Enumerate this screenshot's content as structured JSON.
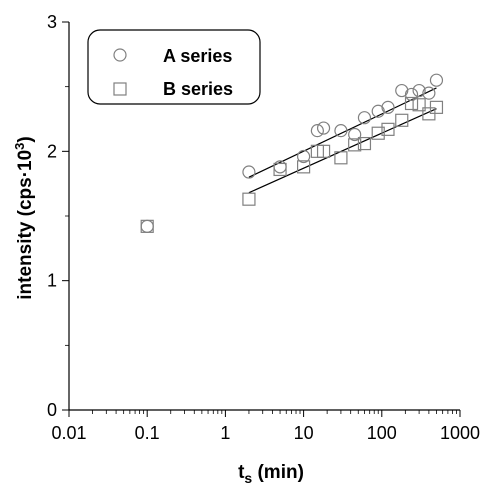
{
  "chart_data": {
    "type": "scatter",
    "xscale": "log",
    "xlim": [
      0.01,
      1000
    ],
    "ylim": [
      0,
      3
    ],
    "xlabel_main": "t",
    "xlabel_sub": "s",
    "xlabel_rest": " (min)",
    "ylabel_main": "intensity (cps·10",
    "ylabel_sup": "3",
    "ylabel_end": ")",
    "x_ticks": [
      0.01,
      0.1,
      1,
      10,
      100,
      1000
    ],
    "x_tick_labels": [
      "0.01",
      "0.1",
      "1",
      "10",
      "100",
      "1000"
    ],
    "y_ticks": [
      0,
      1,
      2,
      3
    ],
    "y_tick_labels": [
      "0",
      "1",
      "2",
      "3"
    ],
    "legend_position": "top-left",
    "series": [
      {
        "name": "A series",
        "marker": "circle",
        "color": "#808080",
        "x": [
          0.1,
          2,
          5,
          10,
          15,
          18,
          30,
          45,
          60,
          90,
          120,
          180,
          240,
          300,
          400,
          500
        ],
        "y": [
          1.42,
          1.84,
          1.88,
          1.96,
          2.16,
          2.18,
          2.16,
          2.13,
          2.26,
          2.31,
          2.34,
          2.47,
          2.44,
          2.47,
          2.45,
          2.55
        ],
        "fit": {
          "x": [
            2,
            500
          ],
          "y": [
            1.8,
            2.49
          ]
        }
      },
      {
        "name": "B series",
        "marker": "square",
        "color": "#808080",
        "x": [
          0.1,
          2,
          5,
          10,
          15,
          18,
          30,
          45,
          60,
          90,
          120,
          180,
          240,
          300,
          400,
          500
        ],
        "y": [
          1.42,
          1.63,
          1.86,
          1.88,
          2.0,
          2.0,
          1.95,
          2.05,
          2.06,
          2.14,
          2.17,
          2.24,
          2.37,
          2.36,
          2.29,
          2.34
        ],
        "fit": {
          "x": [
            2,
            500
          ],
          "y": [
            1.68,
            2.33
          ]
        }
      }
    ]
  }
}
